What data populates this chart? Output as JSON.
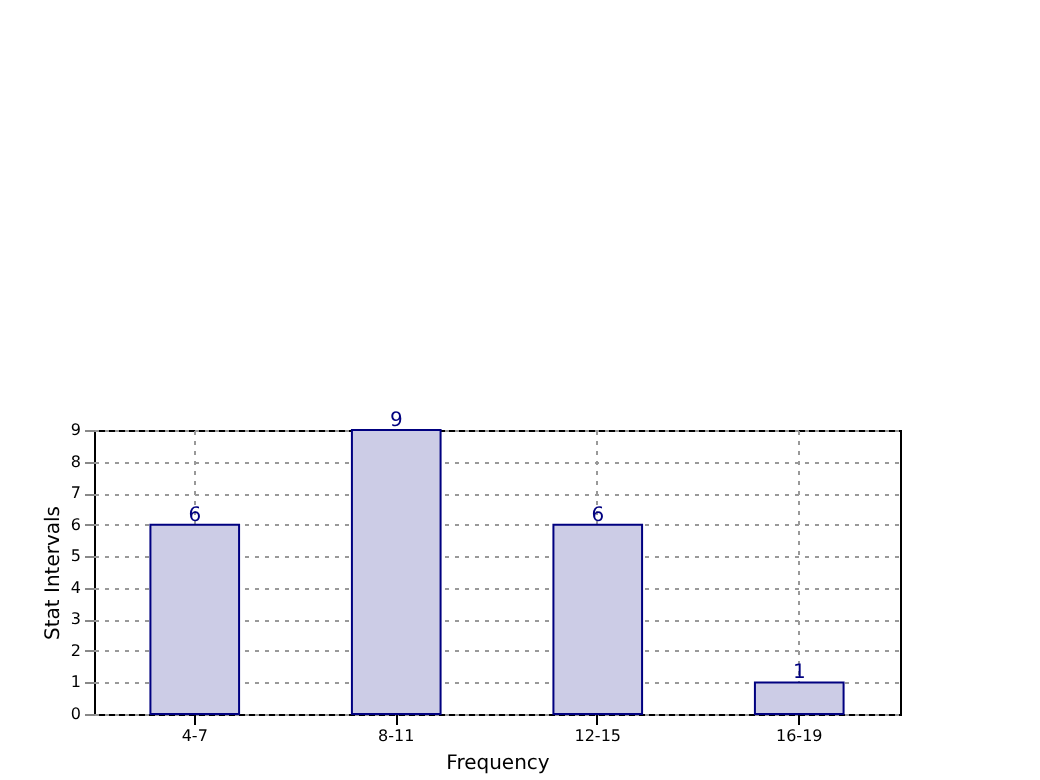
{
  "chart_data": {
    "type": "bar",
    "xlabel": "Frequency",
    "ylabel": "Stat Intervals",
    "categories": [
      "4-7",
      "8-11",
      "12-15",
      "16-19"
    ],
    "series": [
      {
        "color": "#cccce6",
        "values": [
          6,
          9,
          6,
          1
        ]
      }
    ],
    "ylim": [
      0,
      9
    ],
    "yticks": [
      0,
      1,
      2,
      3,
      4,
      5,
      6,
      7,
      8,
      9
    ],
    "grid": true,
    "data_labels": true
  }
}
